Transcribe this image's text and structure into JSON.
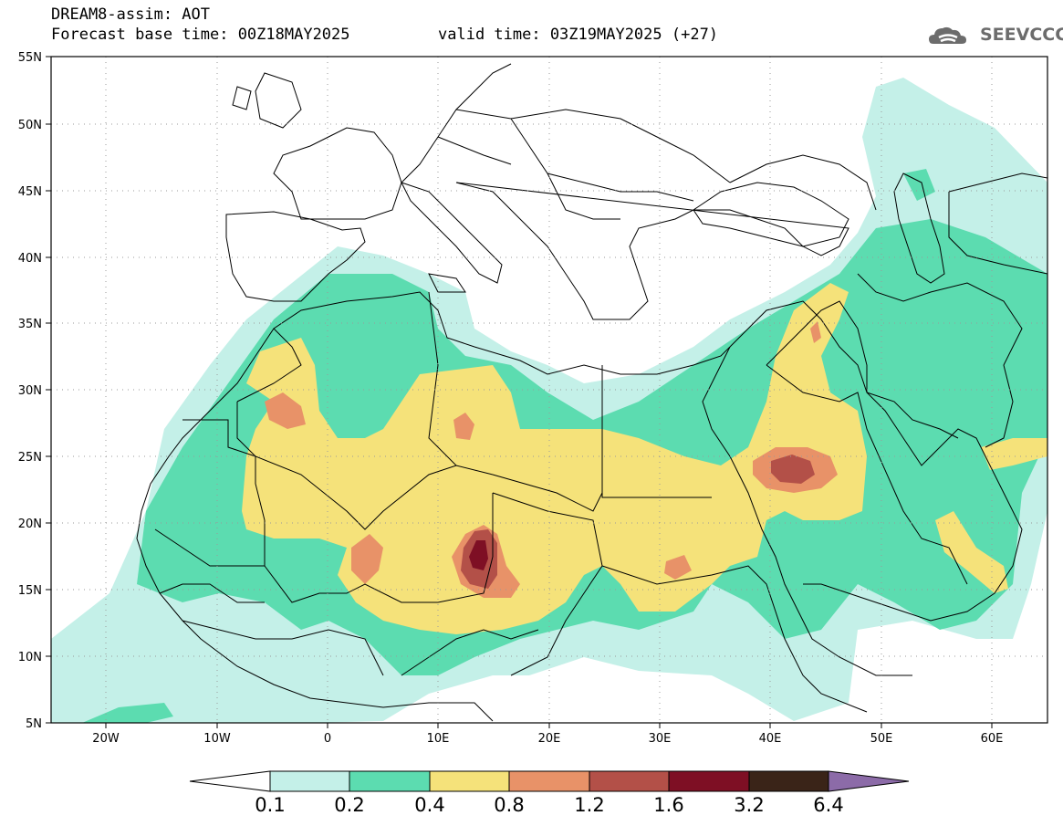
{
  "header": {
    "title_line1": "DREAM8-assim: AOT",
    "title_line2": "Forecast base time: 00Z18MAY2025",
    "valid_time": "valid time: 03Z19MAY2025 (+27)",
    "logo_text": "SEEVCCC"
  },
  "map": {
    "projection": "lat-lon",
    "lon_range": [
      -25,
      65
    ],
    "lat_range": [
      5,
      55
    ],
    "lat_labels": [
      "55N",
      "50N",
      "45N",
      "40N",
      "35N",
      "30N",
      "25N",
      "20N",
      "15N",
      "10N",
      "5N"
    ],
    "lon_labels": [
      "20W",
      "10W",
      "0",
      "10E",
      "20E",
      "30E",
      "40E",
      "50E",
      "60E"
    ],
    "grid": "dotted"
  },
  "legend": {
    "thresholds": [
      "0.1",
      "0.2",
      "0.4",
      "0.8",
      "1.2",
      "1.6",
      "3.2",
      "6.4"
    ],
    "colors": [
      "#ffffff",
      "#c4f0e8",
      "#5cdcb0",
      "#f5e27a",
      "#e89268",
      "#b35048",
      "#7e0f24",
      "#3a2418",
      "#8c6ba8"
    ]
  }
}
